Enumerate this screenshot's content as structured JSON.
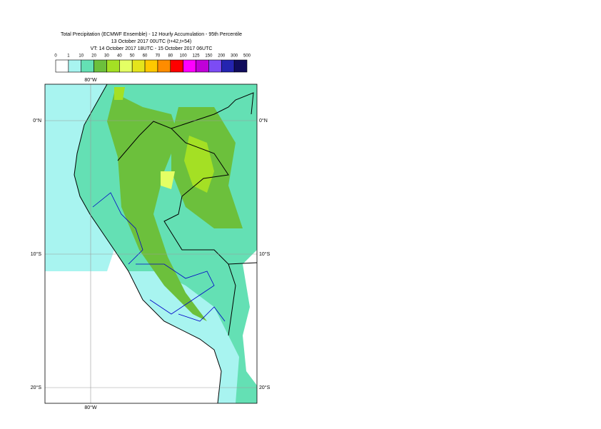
{
  "header": {
    "title": [
      "Total Precipitation (ECMWF Ensemble) - 12 Hourly Accumulation - 95th Percentile",
      "13 October 2017 00UTC (t+42,t+54)",
      "VT: 14 October 2017 18UTC - 15 October 2017 06UTC"
    ]
  },
  "colorbar": {
    "ticks": [
      "0",
      "1",
      "10",
      "20",
      "30",
      "40",
      "50",
      "60",
      "70",
      "80",
      "100",
      "125",
      "150",
      "200",
      "300",
      "500"
    ],
    "colors": [
      "#ffffff",
      "#a8f4f0",
      "#64e0b4",
      "#6cc03c",
      "#a4e024",
      "#e4ff64",
      "#e4e41c",
      "#ffc800",
      "#ff8c00",
      "#ff0000",
      "#ff00ff",
      "#c000d8",
      "#7c4cf4",
      "#2424b0",
      "#100c5c"
    ]
  },
  "map": {
    "lon_labels_top": [
      "80°W"
    ],
    "lon_labels_bottom": [
      "80°W"
    ],
    "lat_labels_left": [
      "0°N",
      "10°S",
      "20°S"
    ],
    "lat_labels_right": [
      "0°N",
      "10°S",
      "20°S"
    ]
  }
}
